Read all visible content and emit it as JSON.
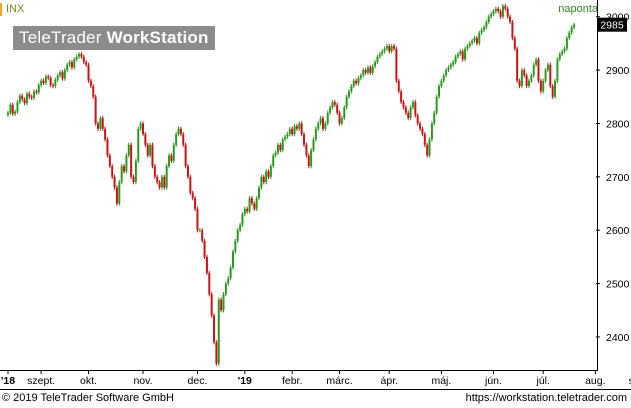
{
  "header": {
    "symbol": "INX",
    "interval": "naponta",
    "logo_regular": "TeleTrader ",
    "logo_bold": "WorkStation"
  },
  "footer": {
    "copyright": "© 2019 TeleTrader Software GmbH",
    "url": "https://workstation.teletrader.com"
  },
  "colors": {
    "up": "#2a9a1e",
    "down": "#c81414",
    "badge": "#000000",
    "accent": "#f5a623"
  },
  "chart_data": {
    "type": "candlestick",
    "title": "",
    "xlabel": "",
    "ylabel": "",
    "ylim": [
      2340,
      3020
    ],
    "y_ticks": [
      2400,
      2500,
      2600,
      2700,
      2800,
      2900,
      3000
    ],
    "y_axis_position": "right",
    "last_value_label": "2985",
    "last_value": 2985,
    "x_ticks": [
      {
        "label": "'18",
        "bold": true
      },
      {
        "label": "szept.",
        "bold": false
      },
      {
        "label": "okt.",
        "bold": false
      },
      {
        "label": "nov.",
        "bold": false
      },
      {
        "label": "dec.",
        "bold": false
      },
      {
        "label": "'19",
        "bold": true
      },
      {
        "label": "febr.",
        "bold": false
      },
      {
        "label": "márc.",
        "bold": false
      },
      {
        "label": "ápr.",
        "bold": false
      },
      {
        "label": "máj.",
        "bold": false
      },
      {
        "label": "jún.",
        "bold": false
      },
      {
        "label": "júl.",
        "bold": false
      },
      {
        "label": "aug.",
        "bold": false
      },
      {
        "label": "szept.",
        "bold": false
      }
    ],
    "x_tick_positions": [
      0,
      14,
      34,
      57,
      80,
      100,
      120,
      140,
      161,
      183,
      205,
      226,
      248,
      268
    ],
    "closes": [
      2820,
      2835,
      2818,
      2822,
      2840,
      2852,
      2845,
      2838,
      2856,
      2850,
      2848,
      2860,
      2858,
      2872,
      2880,
      2876,
      2888,
      2885,
      2872,
      2870,
      2882,
      2890,
      2896,
      2884,
      2900,
      2910,
      2915,
      2905,
      2920,
      2925,
      2930,
      2925,
      2915,
      2910,
      2880,
      2870,
      2850,
      2800,
      2790,
      2810,
      2790,
      2770,
      2740,
      2720,
      2700,
      2680,
      2650,
      2690,
      2720,
      2710,
      2740,
      2760,
      2700,
      2690,
      2730,
      2790,
      2800,
      2780,
      2760,
      2740,
      2760,
      2720,
      2700,
      2690,
      2680,
      2700,
      2680,
      2720,
      2740,
      2730,
      2760,
      2780,
      2790,
      2780,
      2760,
      2720,
      2700,
      2670,
      2660,
      2640,
      2600,
      2600,
      2580,
      2550,
      2520,
      2480,
      2440,
      2390,
      2350,
      2470,
      2450,
      2480,
      2500,
      2510,
      2530,
      2560,
      2580,
      2600,
      2610,
      2630,
      2640,
      2635,
      2660,
      2650,
      2640,
      2660,
      2680,
      2700,
      2690,
      2710,
      2700,
      2720,
      2740,
      2745,
      2760,
      2750,
      2770,
      2775,
      2780,
      2790,
      2780,
      2795,
      2790,
      2800,
      2780,
      2760,
      2740,
      2720,
      2750,
      2770,
      2790,
      2800,
      2810,
      2790,
      2800,
      2820,
      2830,
      2840,
      2835,
      2820,
      2800,
      2810,
      2830,
      2850,
      2860,
      2870,
      2880,
      2875,
      2885,
      2890,
      2900,
      2895,
      2905,
      2895,
      2907,
      2915,
      2925,
      2930,
      2935,
      2940,
      2945,
      2935,
      2945,
      2940,
      2880,
      2860,
      2840,
      2830,
      2820,
      2810,
      2830,
      2840,
      2815,
      2800,
      2790,
      2780,
      2760,
      2740,
      2770,
      2800,
      2820,
      2850,
      2870,
      2880,
      2890,
      2900,
      2905,
      2910,
      2915,
      2925,
      2930,
      2935,
      2920,
      2940,
      2945,
      2950,
      2955,
      2960,
      2950,
      2970,
      2975,
      2980,
      2990,
      3000,
      3005,
      3010,
      3015,
      3010,
      3000,
      3020,
      3015,
      3000,
      2990,
      2960,
      2940,
      2880,
      2870,
      2900,
      2890,
      2870,
      2880,
      2890,
      2910,
      2920,
      2880,
      2860,
      2880,
      2900,
      2910,
      2870,
      2850,
      2880,
      2920,
      2930,
      2935,
      2940,
      2960,
      2970,
      2980,
      2985
    ]
  }
}
